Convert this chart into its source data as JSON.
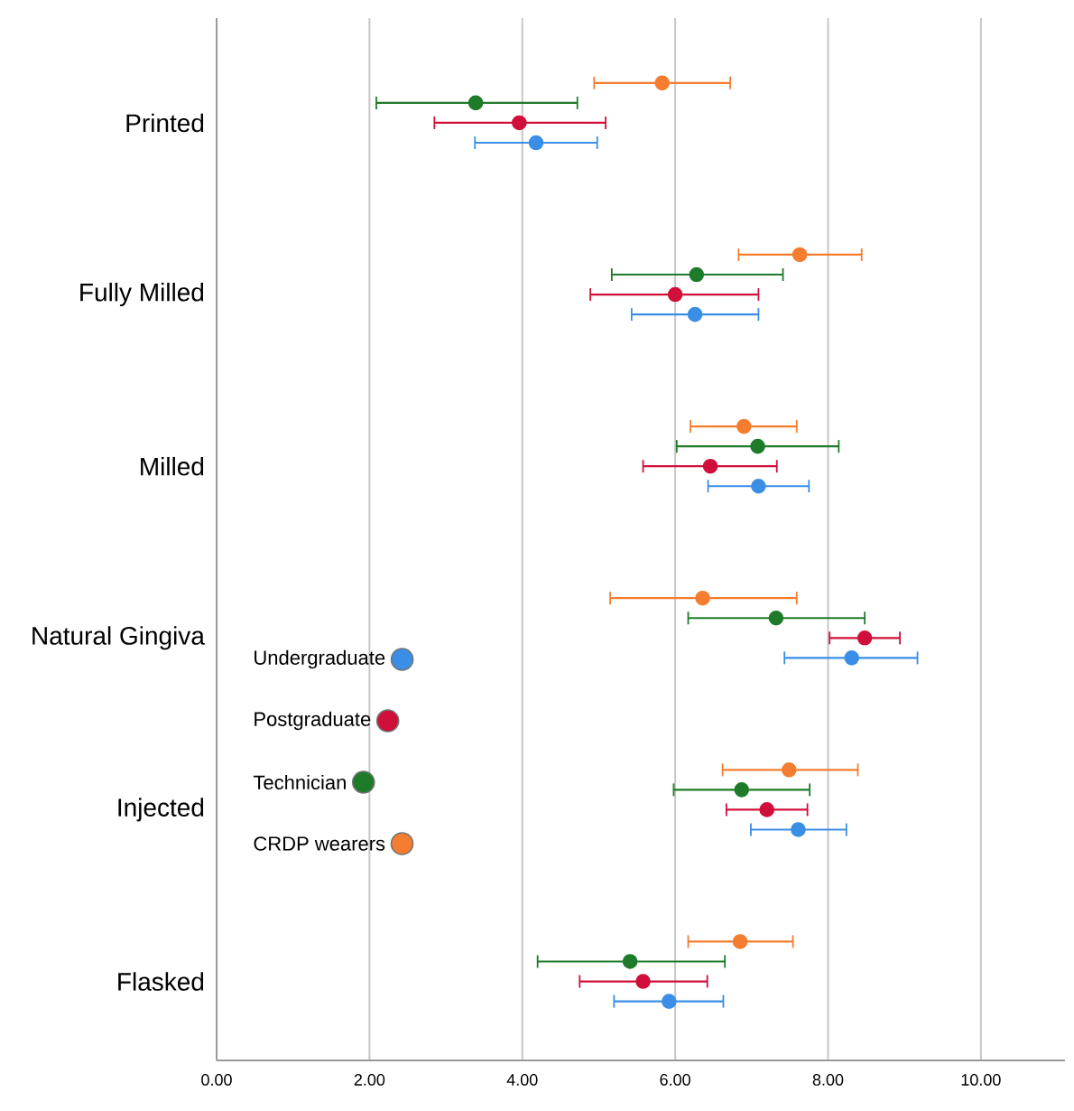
{
  "chart_data": {
    "type": "scatter",
    "orientation": "horizontal",
    "categories": [
      "Printed",
      "Fully Milled",
      "Milled",
      "Natural Gingiva",
      "Injected",
      "Flasked"
    ],
    "series": [
      {
        "name": "Undergraduate",
        "color": "#3a8ee6",
        "values": [
          4.18,
          6.26,
          7.09,
          8.31,
          7.61,
          5.92
        ],
        "errors": [
          [
            3.38,
            4.98
          ],
          [
            5.43,
            7.09
          ],
          [
            6.43,
            7.75
          ],
          [
            7.43,
            9.17
          ],
          [
            6.99,
            8.24
          ],
          [
            5.2,
            6.63
          ]
        ]
      },
      {
        "name": "Postgraduate",
        "color": "#d0103a",
        "values": [
          3.96,
          6.0,
          6.46,
          8.48,
          7.2,
          5.58
        ],
        "errors": [
          [
            2.85,
            5.09
          ],
          [
            4.89,
            7.09
          ],
          [
            5.58,
            7.33
          ],
          [
            8.02,
            8.94
          ],
          [
            6.67,
            7.73
          ],
          [
            4.75,
            6.42
          ]
        ]
      },
      {
        "name": "Technician",
        "color": "#1e7b2a",
        "values": [
          3.39,
          6.28,
          7.08,
          7.32,
          6.87,
          5.41
        ],
        "errors": [
          [
            2.09,
            4.72
          ],
          [
            5.17,
            7.41
          ],
          [
            6.02,
            8.14
          ],
          [
            6.17,
            8.48
          ],
          [
            5.98,
            7.76
          ],
          [
            4.2,
            6.65
          ]
        ]
      },
      {
        "name": "CRDP wearers",
        "color": "#f57d2f",
        "values": [
          5.83,
          7.63,
          6.9,
          6.36,
          7.49,
          6.85
        ],
        "errors": [
          [
            4.94,
            6.72
          ],
          [
            6.83,
            8.44
          ],
          [
            6.2,
            7.59
          ],
          [
            5.15,
            7.59
          ],
          [
            6.62,
            8.39
          ],
          [
            6.17,
            7.54
          ]
        ]
      }
    ],
    "xlim": [
      0,
      11.1
    ],
    "xticks": [
      {
        "value": 0,
        "label": "0.00"
      },
      {
        "value": 2,
        "label": "2.00"
      },
      {
        "value": 4,
        "label": "4.00"
      },
      {
        "value": 6,
        "label": "6.00"
      },
      {
        "value": 8,
        "label": "8.00"
      },
      {
        "value": 10,
        "label": "10.00"
      }
    ],
    "grid": "x",
    "legend": "left",
    "marker": "circle"
  }
}
